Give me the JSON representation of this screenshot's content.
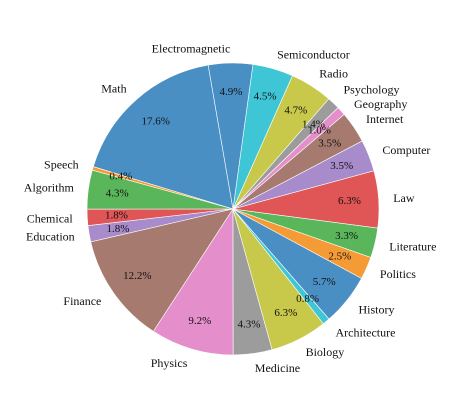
{
  "chart_data": {
    "type": "pie",
    "title": "",
    "start_angle_deg": 99.79,
    "direction": "counterclockwise",
    "slices": [
      {
        "label": "Math",
        "value": 17.6,
        "value_label": "17.6%",
        "color": "#4a8fc4"
      },
      {
        "label": "Speech",
        "value": 0.4,
        "value_label": "0.4%",
        "color": "#f59b35"
      },
      {
        "label": "Algorithm",
        "value": 4.3,
        "value_label": "4.3%",
        "color": "#5ab65a"
      },
      {
        "label": "Chemical",
        "value": 1.8,
        "value_label": "1.8%",
        "color": "#e05555"
      },
      {
        "label": "Education",
        "value": 1.8,
        "value_label": "1.8%",
        "color": "#a88bca"
      },
      {
        "label": "Finance",
        "value": 12.2,
        "value_label": "12.2%",
        "color": "#a67a6e"
      },
      {
        "label": "Physics",
        "value": 9.2,
        "value_label": "9.2%",
        "color": "#e48fcb"
      },
      {
        "label": "Medicine",
        "value": 4.3,
        "value_label": "4.3%",
        "color": "#9c9c9c"
      },
      {
        "label": "Biology",
        "value": 6.3,
        "value_label": "6.3%",
        "color": "#c8c84a"
      },
      {
        "label": "Architecture",
        "value": 0.8,
        "value_label": "0.8%",
        "color": "#3fc6d6"
      },
      {
        "label": "History",
        "value": 5.7,
        "value_label": "5.7%",
        "color": "#4a8fc4"
      },
      {
        "label": "Politics",
        "value": 2.5,
        "value_label": "2.5%",
        "color": "#f59b35"
      },
      {
        "label": "Literature",
        "value": 3.3,
        "value_label": "3.3%",
        "color": "#5ab65a"
      },
      {
        "label": "Law",
        "value": 6.3,
        "value_label": "6.3%",
        "color": "#e05555"
      },
      {
        "label": "Computer",
        "value": 3.5,
        "value_label": "3.5%",
        "color": "#a88bca"
      },
      {
        "label": "Internet",
        "value": 3.5,
        "value_label": "3.5%",
        "color": "#a67a6e"
      },
      {
        "label": "Geography",
        "value": 1.0,
        "value_label": "1.0%",
        "color": "#e48fcb"
      },
      {
        "label": "Psychology",
        "value": 1.4,
        "value_label": "1.4%",
        "color": "#9c9c9c"
      },
      {
        "label": "Radio",
        "value": 4.7,
        "value_label": "4.7%",
        "color": "#c8c84a"
      },
      {
        "label": "Semiconductor",
        "value": 4.5,
        "value_label": "4.5%",
        "color": "#3fc6d6"
      },
      {
        "label": "Electromagnetic",
        "value": 4.9,
        "value_label": "4.9%",
        "color": "#4a8fc4"
      }
    ]
  }
}
